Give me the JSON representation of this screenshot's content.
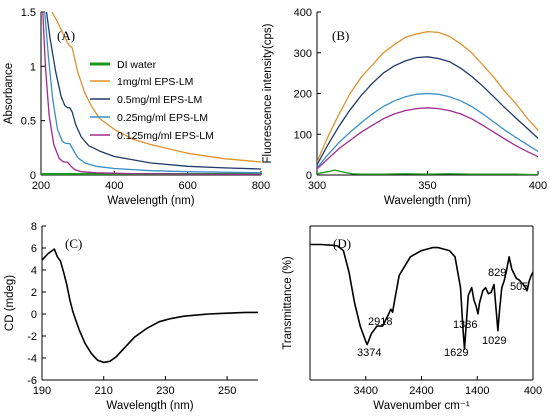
{
  "chart_data": [
    {
      "panel": "(A)",
      "type": "line",
      "xlabel": "Wavelength (nm)",
      "ylabel": "Absorbance",
      "xlim": [
        200,
        800
      ],
      "ylim": [
        0,
        1.5
      ],
      "xticks": [
        200,
        400,
        600,
        800
      ],
      "yticks": [
        0,
        0.5,
        1,
        1.5
      ],
      "ytick_labels": [
        "0",
        "0.5",
        "1",
        "1.5"
      ],
      "legend_position": "right",
      "series": [
        {
          "name": "DI water",
          "color": "#1a9a1a",
          "width": 3,
          "x": [
            200,
            800
          ],
          "y": [
            0.005,
            0.005
          ]
        },
        {
          "name": "1mg/ml EPS-LM",
          "color": "#e0922e",
          "width": 1.3,
          "x": [
            230,
            245,
            260,
            275,
            285,
            290,
            300,
            320,
            340,
            360,
            400,
            450,
            500,
            600,
            700,
            800
          ],
          "y": [
            1.5,
            1.41,
            1.3,
            1.2,
            1.17,
            1.1,
            0.95,
            0.75,
            0.62,
            0.52,
            0.42,
            0.33,
            0.28,
            0.2,
            0.15,
            0.12
          ]
        },
        {
          "name": "0.5mg/ml EPS-LM",
          "color": "#1f3a68",
          "width": 1.3,
          "x": [
            215,
            225,
            240,
            255,
            265,
            272,
            278,
            285,
            295,
            310,
            330,
            360,
            400,
            500,
            600,
            700,
            800
          ],
          "y": [
            1.5,
            1.25,
            0.95,
            0.72,
            0.64,
            0.62,
            0.62,
            0.58,
            0.46,
            0.35,
            0.27,
            0.22,
            0.17,
            0.11,
            0.08,
            0.065,
            0.055
          ]
        },
        {
          "name": "0.25mg/ml EPS-LM",
          "color": "#3a8fc8",
          "width": 1.3,
          "x": [
            210,
            220,
            232,
            245,
            258,
            268,
            278,
            288,
            300,
            320,
            350,
            400,
            500,
            600,
            800
          ],
          "y": [
            1.5,
            1.1,
            0.7,
            0.42,
            0.31,
            0.29,
            0.29,
            0.23,
            0.16,
            0.11,
            0.08,
            0.06,
            0.04,
            0.03,
            0.02
          ]
        },
        {
          "name": "0.125mg/ml EPS-LM",
          "color": "#a02a8e",
          "width": 1.3,
          "x": [
            205,
            212,
            222,
            235,
            250,
            262,
            272,
            282,
            292,
            310,
            350,
            450,
            600,
            800
          ],
          "y": [
            1.5,
            1.0,
            0.55,
            0.28,
            0.15,
            0.12,
            0.12,
            0.08,
            0.05,
            0.03,
            0.02,
            0.012,
            0.008,
            0.005
          ]
        }
      ]
    },
    {
      "panel": "(B)",
      "type": "line",
      "xlabel": "Wavelength (nm)",
      "ylabel": "Fluorescence intensity(cps)",
      "xlim": [
        300,
        400
      ],
      "ylim": [
        0,
        400
      ],
      "xticks": [
        300,
        350,
        400
      ],
      "yticks": [
        0,
        100,
        200,
        300,
        400
      ],
      "series": [
        {
          "name": "DI water",
          "color": "#1a9a1a",
          "width": 1.3,
          "x": [
            300,
            305,
            308,
            312,
            316,
            320,
            330,
            340,
            350,
            360,
            370,
            380,
            390,
            400
          ],
          "y": [
            3,
            8,
            12,
            7,
            3,
            2,
            2,
            3,
            2,
            3,
            2,
            2,
            2,
            1
          ]
        },
        {
          "name": "1mg/ml EPS-LM",
          "color": "#e0922e",
          "width": 1.3,
          "x": [
            300,
            305,
            310,
            315,
            320,
            325,
            330,
            335,
            340,
            345,
            350,
            355,
            360,
            365,
            370,
            375,
            380,
            385,
            390,
            395,
            400
          ],
          "y": [
            32,
            95,
            150,
            200,
            240,
            270,
            300,
            320,
            338,
            346,
            352,
            350,
            340,
            322,
            300,
            270,
            240,
            205,
            175,
            140,
            110
          ]
        },
        {
          "name": "0.5mg/ml EPS-LM",
          "color": "#1f3a68",
          "width": 1.3,
          "x": [
            300,
            305,
            310,
            315,
            320,
            325,
            330,
            335,
            340,
            345,
            350,
            355,
            360,
            365,
            370,
            375,
            380,
            385,
            390,
            395,
            400
          ],
          "y": [
            25,
            75,
            120,
            160,
            195,
            225,
            250,
            268,
            280,
            288,
            290,
            286,
            278,
            262,
            242,
            218,
            192,
            165,
            140,
            115,
            90
          ]
        },
        {
          "name": "0.25mg/ml EPS-LM",
          "color": "#3a8fc8",
          "width": 1.3,
          "x": [
            300,
            305,
            310,
            315,
            320,
            325,
            330,
            335,
            340,
            345,
            350,
            355,
            360,
            365,
            370,
            375,
            380,
            385,
            390,
            395,
            400
          ],
          "y": [
            18,
            50,
            80,
            105,
            128,
            150,
            168,
            182,
            192,
            198,
            200,
            198,
            192,
            182,
            168,
            150,
            130,
            110,
            92,
            75,
            58
          ]
        },
        {
          "name": "0.125mg/ml EPS-LM",
          "color": "#a02a8e",
          "width": 1.3,
          "x": [
            300,
            305,
            310,
            315,
            320,
            325,
            330,
            335,
            340,
            345,
            350,
            355,
            360,
            365,
            370,
            375,
            380,
            385,
            390,
            395,
            400
          ],
          "y": [
            15,
            40,
            65,
            85,
            105,
            122,
            138,
            150,
            158,
            163,
            165,
            163,
            158,
            150,
            138,
            122,
            105,
            88,
            72,
            58,
            45
          ]
        }
      ]
    },
    {
      "panel": "(C)",
      "type": "line",
      "xlabel": "Wavelength (nm)",
      "ylabel": "CD (mdeg)",
      "xlim": [
        190,
        260
      ],
      "ylim": [
        -6,
        8
      ],
      "xticks": [
        190,
        210,
        230,
        250
      ],
      "yticks": [
        -6,
        -4,
        -2,
        0,
        2,
        4,
        6,
        8
      ],
      "series": [
        {
          "name": "",
          "color": "#000000",
          "width": 1.6,
          "x": [
            190,
            192,
            194,
            195,
            196,
            197,
            198,
            199,
            200,
            202,
            204,
            206,
            208,
            210,
            212,
            214,
            216,
            218,
            220,
            224,
            228,
            232,
            236,
            240,
            244,
            248,
            252,
            256,
            260
          ],
          "y": [
            4.9,
            5.5,
            5.9,
            5.2,
            4.8,
            3.8,
            2.7,
            1.3,
            0.2,
            -1.4,
            -2.7,
            -3.6,
            -4.2,
            -4.4,
            -4.3,
            -3.9,
            -3.3,
            -2.7,
            -2.1,
            -1.3,
            -0.7,
            -0.4,
            -0.2,
            -0.1,
            0.0,
            0.05,
            0.1,
            0.15,
            0.15
          ]
        }
      ]
    },
    {
      "panel": "(D)",
      "type": "line",
      "xlabel": "Wavenumber cm⁻¹",
      "ylabel": "Transmittance (%)",
      "xlim": [
        4400,
        400
      ],
      "ylim": [
        0,
        100
      ],
      "xticks": [
        3400,
        2400,
        1400,
        400
      ],
      "series": [
        {
          "name": "",
          "color": "#000000",
          "width": 1.6,
          "x": [
            4400,
            4200,
            4000,
            3900,
            3800,
            3700,
            3600,
            3500,
            3400,
            3374,
            3300,
            3200,
            3100,
            3000,
            2950,
            2918,
            2880,
            2800,
            2600,
            2400,
            2200,
            2100,
            2000,
            1900,
            1800,
            1700,
            1660,
            1629,
            1600,
            1560,
            1500,
            1460,
            1420,
            1386,
            1360,
            1300,
            1250,
            1200,
            1150,
            1100,
            1060,
            1029,
            1000,
            960,
            920,
            880,
            829,
            780,
            700,
            650,
            600,
            550,
            505,
            470,
            430,
            400
          ],
          "y": [
            88,
            88,
            87.5,
            87,
            84,
            70,
            50,
            35,
            25,
            23,
            30,
            35,
            35,
            42,
            46,
            44,
            52,
            68,
            80,
            84,
            86,
            86,
            85,
            84,
            80,
            60,
            35,
            20,
            35,
            55,
            60,
            52,
            48,
            43,
            50,
            58,
            60,
            56,
            57,
            62,
            45,
            32,
            45,
            60,
            64,
            70,
            80,
            72,
            66,
            65,
            63,
            61,
            58,
            64,
            68,
            70
          ]
        }
      ],
      "annotations": [
        "3374",
        "2918",
        "1629",
        "1386",
        "1029",
        "829",
        "505"
      ]
    }
  ]
}
